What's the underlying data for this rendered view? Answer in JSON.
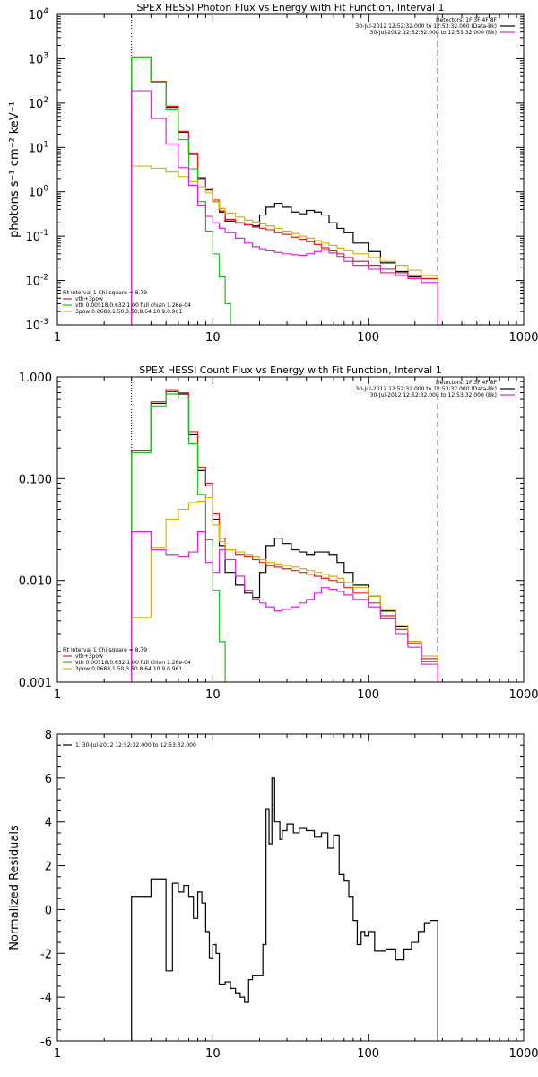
{
  "chart_data": [
    {
      "type": "line",
      "title": "SPEX HESSI Photon Flux vs Energy with Fit Function, Interval 1",
      "ylabel": "photons s⁻¹ cm⁻² keV⁻¹",
      "xlabel": "",
      "xscale": "log",
      "yscale": "log",
      "xlim": [
        1,
        1000
      ],
      "ylim": [
        0.001,
        10000
      ],
      "x_ticks": [
        {
          "value": 1,
          "label": "1"
        },
        {
          "value": 10,
          "label": "10"
        },
        {
          "value": 100,
          "label": "100"
        },
        {
          "value": 1000,
          "label": "1000"
        }
      ],
      "y_ticks": [
        {
          "value": 0.001,
          "base": "10",
          "exp": "-3"
        },
        {
          "value": 0.01,
          "base": "10",
          "exp": "-2"
        },
        {
          "value": 0.1,
          "base": "10",
          "exp": "-1"
        },
        {
          "value": 1,
          "base": "10",
          "exp": "0"
        },
        {
          "value": 10,
          "base": "10",
          "exp": "1"
        },
        {
          "value": 100,
          "base": "10",
          "exp": "2"
        },
        {
          "value": 1000,
          "base": "10",
          "exp": "3"
        },
        {
          "value": 10000,
          "base": "10",
          "exp": "4"
        }
      ],
      "info_lines": [
        "Detectors: 1F 3F 4F 8F",
        "30-Jul-2012 12:52:32.000 to 12:53:32.000 (Data-Bk)",
        "30-Jul-2012 12:52:32.000 to 12:53:32.000 (Bk)"
      ],
      "info_colors": [
        "",
        "#000000",
        "#e020e0"
      ],
      "legend_lines": [
        "Fit Interval 1    Chi-square = 8.79",
        "vth+3pow",
        "vth 0.00518,0.632,1.00   full chian 1.26e-04",
        "3pow 0.0688,1.50,3.50,8.64,10.9,0.961"
      ],
      "legend_colors": [
        "",
        "#e02020",
        "#20c020",
        "#d8b000"
      ],
      "vlines": [
        {
          "x": 3.0,
          "style": "dotted"
        },
        {
          "x": 280,
          "style": "dashed"
        }
      ],
      "series": [
        {
          "color": "#000000",
          "edges": [
            3.0,
            4.0,
            5.0,
            6.0,
            7.0,
            8.0,
            9.0,
            10.0,
            11.0,
            12.0,
            14.0,
            16.0,
            18.0,
            20.0,
            22.0,
            25.0,
            28.0,
            32.0,
            36.0,
            40.0,
            45.0,
            50.0,
            56.0,
            63.0,
            70.0,
            80.0,
            100.0,
            120.0,
            150.0,
            180.0,
            220.0,
            280.0
          ],
          "values": [
            1050,
            300,
            80,
            22,
            7,
            2,
            1.1,
            0.6,
            0.35,
            0.22,
            0.2,
            0.18,
            0.17,
            0.3,
            0.45,
            0.55,
            0.45,
            0.35,
            0.32,
            0.38,
            0.35,
            0.3,
            0.2,
            0.15,
            0.12,
            0.07,
            0.045,
            0.025,
            0.016,
            0.012,
            0.011
          ]
        },
        {
          "color": "#e02020",
          "edges": [
            3.0,
            4.0,
            5.0,
            6.0,
            7.0,
            8.0,
            9.0,
            10.0,
            11.0,
            12.0,
            14.0,
            16.0,
            18.0,
            20.0,
            22.0,
            25.0,
            28.0,
            32.0,
            36.0,
            40.0,
            45.0,
            50.0,
            56.0,
            63.0,
            70.0,
            80.0,
            100.0,
            120.0,
            150.0,
            180.0,
            220.0,
            280.0
          ],
          "values": [
            1100,
            310,
            85,
            23,
            7.5,
            2.1,
            1.2,
            0.65,
            0.37,
            0.24,
            0.2,
            0.18,
            0.16,
            0.15,
            0.14,
            0.12,
            0.11,
            0.095,
            0.085,
            0.075,
            0.065,
            0.055,
            0.047,
            0.04,
            0.033,
            0.027,
            0.022,
            0.018,
            0.015,
            0.013,
            0.011
          ]
        },
        {
          "color": "#20c020",
          "edges": [
            3.0,
            4.0,
            5.0,
            6.0,
            7.0,
            8.0,
            9.0,
            10.0,
            11.0,
            12.0,
            13.0,
            14.0
          ],
          "values": [
            1050,
            300,
            70,
            15,
            3.3,
            0.6,
            0.13,
            0.04,
            0.012,
            0.003,
            0.001
          ]
        },
        {
          "color": "#d8b000",
          "edges": [
            3.0,
            4.0,
            5.0,
            6.0,
            7.0,
            8.0,
            9.0,
            10.0,
            11.0,
            12.0,
            14.0,
            16.0,
            18.0,
            20.0,
            22.0,
            25.0,
            28.0,
            32.0,
            36.0,
            40.0,
            45.0,
            50.0,
            56.0,
            63.0,
            70.0,
            80.0,
            100.0,
            120.0,
            150.0,
            180.0,
            220.0,
            280.0
          ],
          "values": [
            3.8,
            3.4,
            2.8,
            2.2,
            1.7,
            1.3,
            0.95,
            0.6,
            0.42,
            0.33,
            0.27,
            0.23,
            0.21,
            0.19,
            0.17,
            0.15,
            0.13,
            0.115,
            0.1,
            0.09,
            0.08,
            0.07,
            0.062,
            0.054,
            0.047,
            0.04,
            0.033,
            0.027,
            0.022,
            0.017,
            0.013
          ]
        },
        {
          "color": "#e020e0",
          "edges": [
            3.0,
            4.0,
            5.0,
            6.0,
            7.0,
            8.0,
            9.0,
            10.0,
            11.0,
            12.0,
            14.0,
            16.0,
            18.0,
            20.0,
            22.0,
            25.0,
            28.0,
            32.0,
            36.0,
            40.0,
            45.0,
            50.0,
            56.0,
            63.0,
            70.0,
            80.0,
            100.0,
            120.0,
            150.0,
            180.0,
            220.0,
            280.0
          ],
          "values": [
            190,
            45,
            12,
            3.5,
            1.4,
            0.5,
            0.28,
            0.2,
            0.15,
            0.12,
            0.09,
            0.07,
            0.058,
            0.052,
            0.047,
            0.043,
            0.04,
            0.038,
            0.037,
            0.04,
            0.045,
            0.05,
            0.042,
            0.035,
            0.027,
            0.022,
            0.018,
            0.015,
            0.013,
            0.011,
            0.009
          ]
        }
      ]
    },
    {
      "type": "line",
      "title": "SPEX HESSI Count Flux vs Energy with Fit Function, Interval 1",
      "ylabel": "",
      "xlabel": "",
      "xscale": "log",
      "yscale": "log",
      "xlim": [
        1,
        1000
      ],
      "ylim": [
        0.001,
        1.0
      ],
      "x_ticks": [
        {
          "value": 1,
          "label": "1"
        },
        {
          "value": 10,
          "label": "10"
        },
        {
          "value": 100,
          "label": "100"
        },
        {
          "value": 1000,
          "label": "1000"
        }
      ],
      "y_ticks": [
        {
          "value": 0.001,
          "label": "0.001"
        },
        {
          "value": 0.01,
          "label": "0.010"
        },
        {
          "value": 0.1,
          "label": "0.100"
        },
        {
          "value": 1.0,
          "label": "1.000"
        }
      ],
      "info_lines": [
        "Detectors: 1F 3F 4F 8F",
        "30-Jul-2012 12:52:32.000 to 12:53:32.000 (Data-Bk)",
        "30-Jul-2012 12:52:32.000 to 12:53:32.000 (Bk)"
      ],
      "info_colors": [
        "",
        "#000000",
        "#e020e0"
      ],
      "legend_lines": [
        "Fit Interval 1    Chi-square = 8.79",
        "vth+3pow",
        "vth 0.00518,0.632,1.00   full chian 1.26e-04",
        "3pow 0.0688,1.50,3.50,8.64,10.9,0.961"
      ],
      "legend_colors": [
        "",
        "#e02020",
        "#20c020",
        "#d8b000"
      ],
      "vlines": [
        {
          "x": 3.0,
          "style": "dotted"
        },
        {
          "x": 280,
          "style": "dashed"
        }
      ],
      "series": [
        {
          "color": "#000000",
          "edges": [
            3.0,
            4.0,
            5.0,
            6.0,
            7.0,
            8.0,
            9.0,
            10.0,
            11.0,
            12.0,
            14.0,
            16.0,
            18.0,
            20.0,
            22.0,
            25.0,
            28.0,
            32.0,
            36.0,
            40.0,
            45.0,
            50.0,
            56.0,
            63.0,
            70.0,
            80.0,
            100.0,
            120.0,
            150.0,
            180.0,
            220.0,
            280.0
          ],
          "values": [
            0.19,
            0.55,
            0.72,
            0.68,
            0.27,
            0.12,
            0.085,
            0.04,
            0.022,
            0.012,
            0.009,
            0.0075,
            0.0068,
            0.012,
            0.022,
            0.026,
            0.023,
            0.02,
            0.019,
            0.018,
            0.019,
            0.019,
            0.018,
            0.015,
            0.012,
            0.009,
            0.007,
            0.005,
            0.0035,
            0.0025,
            0.0016
          ]
        },
        {
          "color": "#e02020",
          "edges": [
            3.0,
            4.0,
            5.0,
            6.0,
            7.0,
            8.0,
            9.0,
            10.0,
            11.0,
            12.0,
            14.0,
            16.0,
            18.0,
            20.0,
            22.0,
            25.0,
            28.0,
            32.0,
            36.0,
            40.0,
            45.0,
            50.0,
            56.0,
            63.0,
            70.0,
            80.0,
            100.0,
            120.0,
            150.0,
            180.0,
            220.0,
            280.0
          ],
          "values": [
            0.19,
            0.57,
            0.75,
            0.7,
            0.29,
            0.13,
            0.09,
            0.045,
            0.026,
            0.02,
            0.018,
            0.017,
            0.016,
            0.015,
            0.014,
            0.0135,
            0.013,
            0.0125,
            0.012,
            0.0115,
            0.011,
            0.0105,
            0.01,
            0.0095,
            0.0085,
            0.0075,
            0.006,
            0.0045,
            0.0033,
            0.0024,
            0.0017
          ]
        },
        {
          "color": "#20c020",
          "edges": [
            3.0,
            4.0,
            5.0,
            6.0,
            7.0,
            8.0,
            9.0,
            10.0,
            11.0,
            12.0
          ],
          "values": [
            0.18,
            0.52,
            0.68,
            0.62,
            0.22,
            0.07,
            0.025,
            0.008,
            0.0025
          ]
        },
        {
          "color": "#d8b000",
          "edges": [
            3.0,
            4.0,
            5.0,
            6.0,
            7.0,
            8.0,
            9.0,
            10.0,
            11.0,
            12.0,
            14.0,
            16.0,
            18.0,
            20.0,
            22.0,
            25.0,
            28.0,
            32.0,
            36.0,
            40.0,
            45.0,
            50.0,
            56.0,
            63.0,
            70.0,
            80.0,
            100.0,
            120.0,
            150.0,
            180.0,
            220.0,
            280.0
          ],
          "values": [
            0.0043,
            0.021,
            0.04,
            0.05,
            0.058,
            0.06,
            0.065,
            0.035,
            0.024,
            0.02,
            0.019,
            0.018,
            0.017,
            0.016,
            0.015,
            0.0145,
            0.014,
            0.0135,
            0.013,
            0.0125,
            0.012,
            0.0115,
            0.011,
            0.0105,
            0.0095,
            0.0085,
            0.007,
            0.0052,
            0.0036,
            0.0025,
            0.0018
          ]
        },
        {
          "color": "#e020e0",
          "edges": [
            3.0,
            4.0,
            5.0,
            6.0,
            7.0,
            8.0,
            9.0,
            10.0,
            11.0,
            12.0,
            14.0,
            16.0,
            18.0,
            20.0,
            22.0,
            25.0,
            28.0,
            32.0,
            36.0,
            40.0,
            45.0,
            50.0,
            56.0,
            63.0,
            70.0,
            80.0,
            100.0,
            120.0,
            150.0,
            180.0,
            220.0,
            280.0
          ],
          "values": [
            0.03,
            0.02,
            0.018,
            0.017,
            0.019,
            0.03,
            0.015,
            0.012,
            0.02,
            0.016,
            0.011,
            0.008,
            0.0065,
            0.006,
            0.0055,
            0.005,
            0.0052,
            0.0055,
            0.006,
            0.0065,
            0.0075,
            0.0085,
            0.0082,
            0.0078,
            0.0072,
            0.0065,
            0.0055,
            0.0042,
            0.003,
            0.0022,
            0.0015
          ]
        }
      ]
    },
    {
      "type": "line",
      "title": "",
      "ylabel": "Normalized Residuals",
      "xlabel": "",
      "xscale": "log",
      "yscale": "linear",
      "xlim": [
        1,
        1000
      ],
      "ylim": [
        -6,
        8
      ],
      "x_ticks": [
        {
          "value": 1,
          "label": "1"
        },
        {
          "value": 10,
          "label": "10"
        },
        {
          "value": 100,
          "label": "100"
        },
        {
          "value": 1000,
          "label": "1000"
        }
      ],
      "y_ticks": [
        {
          "value": -6,
          "label": "-6"
        },
        {
          "value": -4,
          "label": "-4"
        },
        {
          "value": -2,
          "label": "-2"
        },
        {
          "value": 0,
          "label": "0"
        },
        {
          "value": 2,
          "label": "2"
        },
        {
          "value": 4,
          "label": "4"
        },
        {
          "value": 6,
          "label": "6"
        },
        {
          "value": 8,
          "label": "8"
        }
      ],
      "legend_lines": [
        "1. 30-Jul-2012 12:52:32.000 to 12:53:32.000"
      ],
      "legend_colors": [
        "#000000"
      ],
      "vlines": [],
      "series": [
        {
          "color": "#000000",
          "edges": [
            3.0,
            4.0,
            4.5,
            5.0,
            5.5,
            6.0,
            6.5,
            7.0,
            7.5,
            8.0,
            8.5,
            9.0,
            9.5,
            10.0,
            10.5,
            11.0,
            12.0,
            13.0,
            14.0,
            15.0,
            16.0,
            17.0,
            18.0,
            19.0,
            21.0,
            22.0,
            23.0,
            24.0,
            25.0,
            27.0,
            28.0,
            30.0,
            33.0,
            36.0,
            40.0,
            45.0,
            50.0,
            55.0,
            60.0,
            65.0,
            70.0,
            75.0,
            80.0,
            85.0,
            90.0,
            95.0,
            100.0,
            110.0,
            130.0,
            150.0,
            170.0,
            190.0,
            210.0,
            230.0,
            250.0,
            280.0
          ],
          "values": [
            0.6,
            1.4,
            1.4,
            -2.8,
            1.2,
            0.8,
            1.1,
            0.6,
            -0.4,
            0.8,
            0.3,
            -1.0,
            -2.2,
            -1.6,
            -2.0,
            -3.4,
            -3.3,
            -3.6,
            -3.8,
            -4.0,
            -4.2,
            -3.2,
            -3.0,
            -3.0,
            -1.6,
            4.6,
            3.0,
            6.0,
            4.0,
            3.2,
            3.6,
            3.9,
            3.5,
            3.7,
            3.6,
            3.3,
            3.5,
            2.8,
            3.4,
            1.6,
            1.3,
            0.6,
            -0.5,
            -1.6,
            -1.0,
            -1.2,
            -1.0,
            -1.9,
            -1.8,
            -2.3,
            -1.8,
            -1.5,
            -1.0,
            -0.6,
            -0.5
          ]
        }
      ]
    }
  ]
}
